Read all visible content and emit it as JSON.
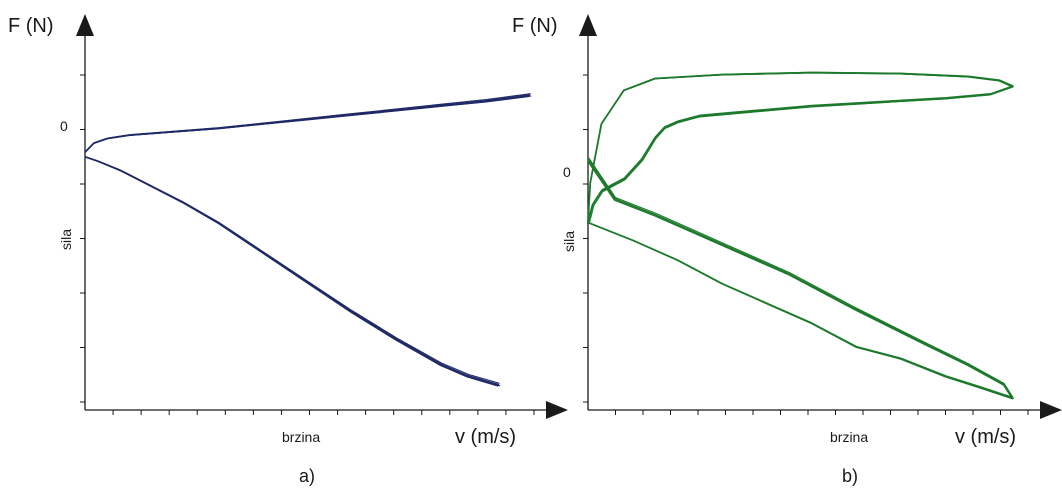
{
  "chart_data": [
    {
      "id": "a",
      "type": "line",
      "panel_label": "a)",
      "y_title": "F (N)",
      "x_title": "v (m/s)",
      "ylabel": "sila",
      "xlabel": "brzina",
      "y_zero_label": "0",
      "xlim": [
        0,
        100
      ],
      "ylim": [
        -110,
        50
      ],
      "x_tick_count": 16,
      "y_tick_count": 7,
      "line_color": "#1f2a66",
      "grid": false,
      "series": [
        {
          "values": [
            [
              0,
              3
            ],
            [
              2,
              7
            ],
            [
              5,
              9
            ],
            [
              10,
              10.5
            ],
            [
              20,
              12
            ],
            [
              30,
              13.5
            ],
            [
              40,
              15.5
            ],
            [
              50,
              17.5
            ],
            [
              60,
              19.5
            ],
            [
              70,
              21.5
            ],
            [
              80,
              23.5
            ],
            [
              90,
              25.5
            ],
            [
              100,
              28
            ]
          ]
        },
        {
          "values": [
            [
              0,
              1
            ],
            [
              3,
              -1
            ],
            [
              8,
              -5
            ],
            [
              15,
              -12
            ],
            [
              22,
              -19
            ],
            [
              30,
              -28
            ],
            [
              40,
              -41
            ],
            [
              50,
              -54
            ],
            [
              60,
              -67
            ],
            [
              70,
              -79
            ],
            [
              80,
              -90
            ],
            [
              86,
              -95
            ],
            [
              93,
              -99
            ]
          ]
        }
      ]
    },
    {
      "id": "b",
      "type": "line",
      "panel_label": "b)",
      "y_title": "F (N)",
      "x_title": "v (m/s)",
      "ylabel": "sila",
      "xlabel": "brzina",
      "y_zero_label": "0",
      "xlim": [
        0,
        100
      ],
      "ylim": [
        -110,
        75
      ],
      "x_tick_count": 16,
      "y_tick_count": 7,
      "line_color": "#1d7a2c",
      "grid": false,
      "series": [
        {
          "values": [
            [
              0,
              -15
            ],
            [
              0.5,
              5
            ],
            [
              3,
              35
            ],
            [
              8,
              52
            ],
            [
              15,
              58
            ],
            [
              30,
              60
            ],
            [
              50,
              61
            ],
            [
              70,
              60.5
            ],
            [
              85,
              59
            ],
            [
              92,
              57
            ],
            [
              95,
              54
            ],
            [
              90,
              50
            ],
            [
              80,
              48
            ],
            [
              65,
              46
            ],
            [
              50,
              44
            ],
            [
              35,
              41
            ],
            [
              25,
              39
            ],
            [
              20,
              36
            ],
            [
              17,
              33
            ],
            [
              15,
              28
            ],
            [
              12,
              17
            ],
            [
              8,
              7
            ],
            [
              3,
              1
            ],
            [
              1,
              -6
            ],
            [
              0,
              -15
            ]
          ]
        },
        {
          "values": [
            [
              0,
              -15
            ],
            [
              10,
              -24
            ],
            [
              20,
              -34
            ],
            [
              30,
              -46
            ],
            [
              40,
              -56
            ],
            [
              50,
              -66
            ],
            [
              60,
              -78
            ],
            [
              70,
              -84
            ],
            [
              80,
              -93
            ],
            [
              87,
              -98
            ],
            [
              95,
              -104
            ],
            [
              93,
              -97
            ],
            [
              85,
              -87
            ],
            [
              75,
              -76
            ],
            [
              60,
              -59
            ],
            [
              45,
              -41
            ],
            [
              30,
              -26
            ],
            [
              15,
              -11
            ],
            [
              6,
              -3
            ],
            [
              0,
              17
            ]
          ]
        }
      ]
    }
  ]
}
